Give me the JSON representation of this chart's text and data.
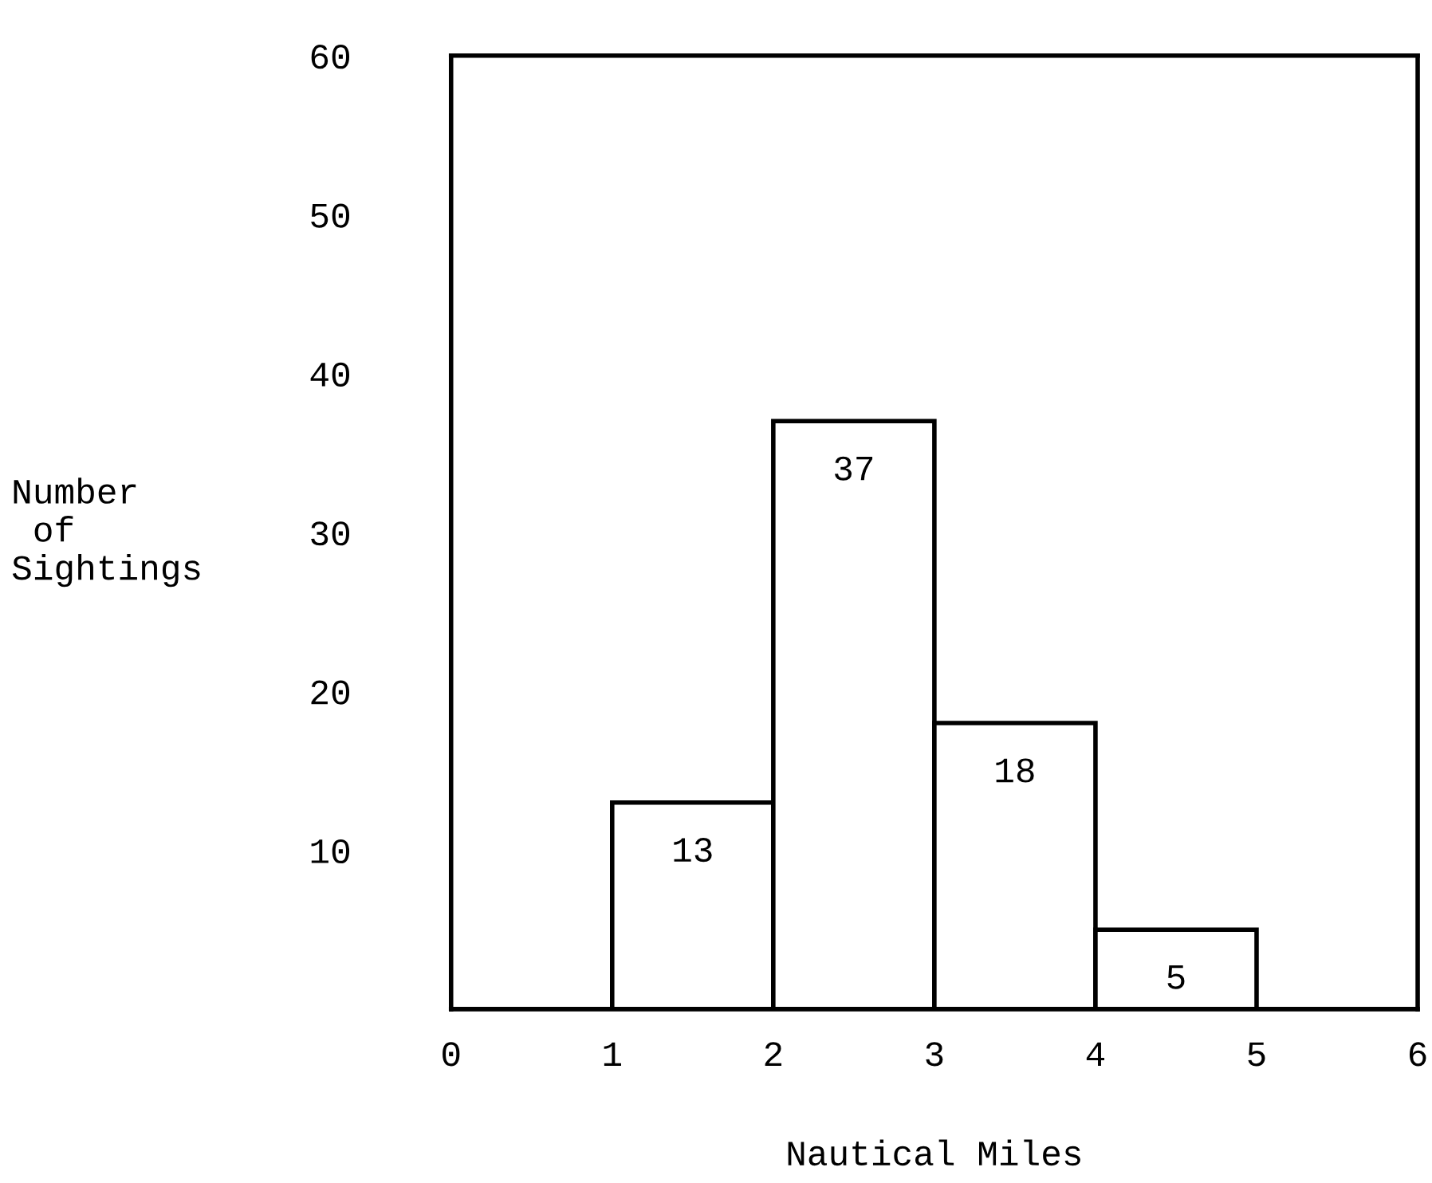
{
  "chart_data": {
    "type": "histogram",
    "xlabel": "Nautical Miles",
    "ylabel": "Number\n of\nSightings",
    "bins": [
      1,
      2,
      3,
      4,
      5
    ],
    "values": [
      13,
      37,
      18,
      5
    ],
    "color": "#ffffff",
    "xlim": [
      0,
      6
    ],
    "xticks": [
      0,
      1,
      2,
      3,
      4,
      5,
      6
    ],
    "ylim": [
      0,
      60
    ],
    "yticks": [
      10,
      20,
      30,
      40,
      50,
      60
    ],
    "data_labels": true,
    "grid": false
  }
}
